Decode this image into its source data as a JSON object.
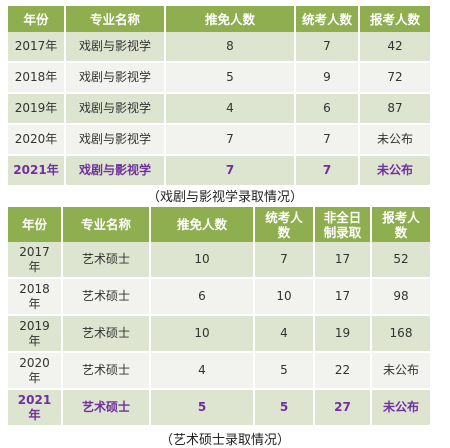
{
  "table1": {
    "headers": [
      "年份",
      "专业名称",
      "推免人数",
      "统考人数",
      "报考人数"
    ],
    "rows": [
      [
        "2017年",
        "戏剧与影视学",
        "8",
        "7",
        "42"
      ],
      [
        "2018年",
        "戏剧与影视学",
        "5",
        "9",
        "72"
      ],
      [
        "2019年",
        "戏剧与影视学",
        "4",
        "6",
        "87"
      ],
      [
        "2020年",
        "戏剧与影视学",
        "7",
        "7",
        "未公布"
      ],
      [
        "2021年",
        "戏剧与影视学",
        "7",
        "7",
        "未公布"
      ]
    ],
    "caption": "（戏剧与影视学录取情况）"
  },
  "table2": {
    "headers": [
      "年份",
      "专业名称",
      "推免人数",
      "统考人\n数",
      "非全日\n制录取",
      "报考人\n数"
    ],
    "rows": [
      [
        "2017\n年",
        "艺术硕士",
        "10",
        "7",
        "17",
        "52"
      ],
      [
        "2018\n年",
        "艺术硕士",
        "6",
        "10",
        "17",
        "98"
      ],
      [
        "2019\n年",
        "艺术硕士",
        "10",
        "4",
        "19",
        "168"
      ],
      [
        "2020\n年",
        "艺术硕士",
        "4",
        "5",
        "22",
        "未公布"
      ],
      [
        "2021\n年",
        "艺术硕士",
        "5",
        "5",
        "27",
        "未公布"
      ]
    ],
    "caption": "（艺术硕士录取情况）"
  },
  "colors": {
    "header_bg": "#8fae4f",
    "row_dark": "#dde4cf",
    "row_light": "#f2f3ee",
    "highlight_text": "#7030a0"
  }
}
